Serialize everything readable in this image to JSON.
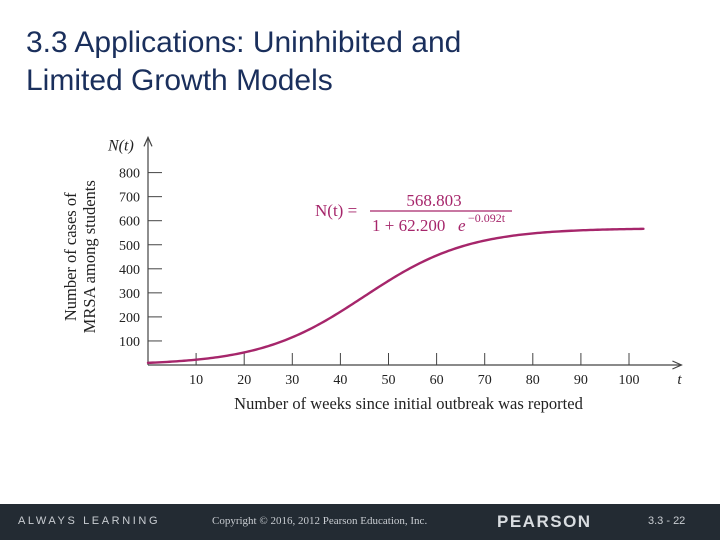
{
  "slide": {
    "title_line1": "3.3 Applications:  Uninhibited and",
    "title_line2": "Limited Growth Models"
  },
  "chart_data": {
    "type": "line",
    "title": "",
    "xlabel": "Number of weeks since initial outbreak was reported",
    "ylabel_lines": [
      "Number of cases of",
      "MRSA among students"
    ],
    "x_axis_var": "t",
    "y_axis_var": "N(t)",
    "xlim": [
      0,
      103
    ],
    "ylim": [
      0,
      830
    ],
    "x_ticks": [
      10,
      20,
      30,
      40,
      50,
      60,
      70,
      80,
      90,
      100
    ],
    "y_ticks": [
      100,
      200,
      300,
      400,
      500,
      600,
      700,
      800
    ],
    "formula": {
      "lhs": "N(t) =",
      "numerator": "568.803",
      "denominator": "1 + 62.200",
      "base": "e",
      "exponent": "−0.092t"
    },
    "model": {
      "c": 568.803,
      "a": 62.2,
      "b": 0.092
    },
    "series": [
      {
        "color": "#a6266b",
        "x_range": [
          0,
          103
        ]
      }
    ],
    "grid": false
  },
  "footer": {
    "left": "ALWAYS LEARNING",
    "copyright": "Copyright © 2016, 2012 Pearson Education, Inc.",
    "brand": "PEARSON",
    "page": "3.3 - 22"
  }
}
